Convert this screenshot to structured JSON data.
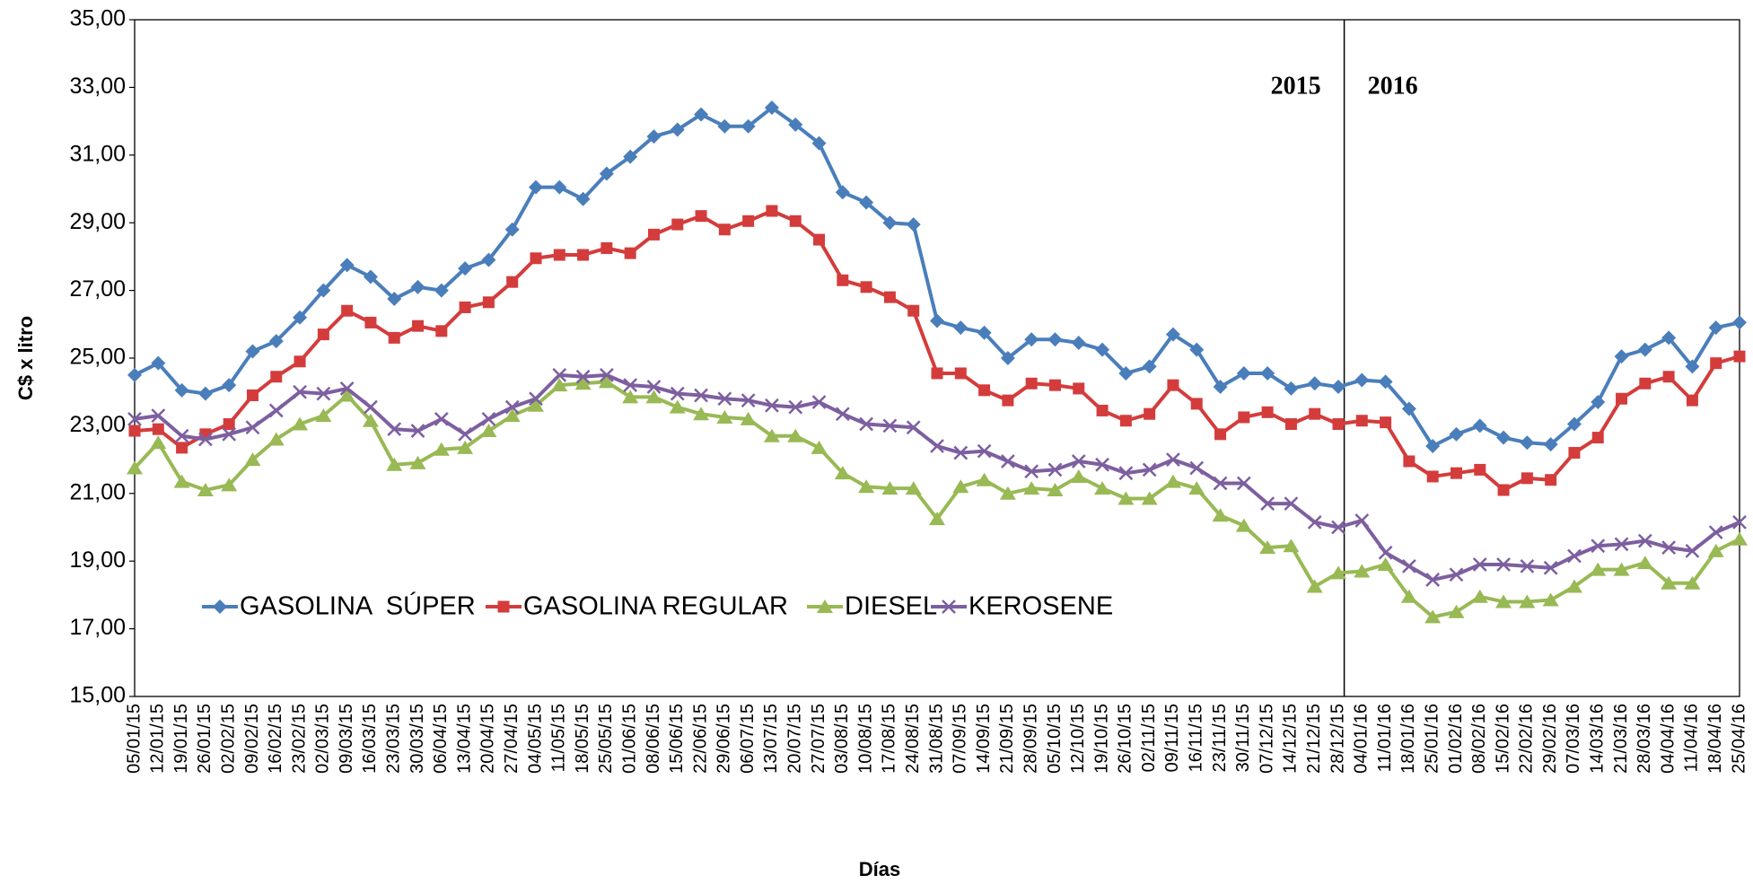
{
  "chart_data": {
    "type": "line",
    "y_label": "C$ x litro",
    "x_label": "Días",
    "annotations": [
      "2015",
      "2016"
    ],
    "categories": [
      "05/01/15",
      "12/01/15",
      "19/01/15",
      "26/01/15",
      "02/02/15",
      "09/02/15",
      "16/02/15",
      "23/02/15",
      "02/03/15",
      "09/03/15",
      "16/03/15",
      "23/03/15",
      "30/03/15",
      "06/04/15",
      "13/04/15",
      "20/04/15",
      "27/04/15",
      "04/05/15",
      "11/05/15",
      "18/05/15",
      "25/05/15",
      "01/06/15",
      "08/06/15",
      "15/06/15",
      "22/06/15",
      "29/06/15",
      "06/07/15",
      "13/07/15",
      "20/07/15",
      "27/07/15",
      "03/08/15",
      "10/08/15",
      "17/08/15",
      "24/08/15",
      "31/08/15",
      "07/09/15",
      "14/09/15",
      "21/09/15",
      "28/09/15",
      "05/10/15",
      "12/10/15",
      "19/10/15",
      "26/10/15",
      "02/11/15",
      "09/11/15",
      "16/11/15",
      "23/11/15",
      "30/11/15",
      "07/12/15",
      "14/12/15",
      "21/12/15",
      "28/12/15",
      "04/01/16",
      "11/01/16",
      "18/01/16",
      "25/01/16",
      "01/02/16",
      "08/02/16",
      "15/02/16",
      "22/02/16",
      "29/02/16",
      "07/03/16",
      "14/03/16",
      "21/03/16",
      "28/03/16",
      "04/04/16",
      "11/04/16",
      "18/04/16",
      "25/04/16"
    ],
    "series": [
      {
        "name": "GASOLINA  SÚPER",
        "color": "#4a7ebb",
        "marker": "diamond",
        "values": [
          24.5,
          24.85,
          24.05,
          23.95,
          24.2,
          25.2,
          25.5,
          26.2,
          27.0,
          27.75,
          27.4,
          26.75,
          27.1,
          27.0,
          27.65,
          27.9,
          28.8,
          30.05,
          30.05,
          29.7,
          30.45,
          30.95,
          31.55,
          31.75,
          32.2,
          31.85,
          31.85,
          32.4,
          31.9,
          31.35,
          29.9,
          29.6,
          29.0,
          28.95,
          26.1,
          25.9,
          25.75,
          25.0,
          25.55,
          25.55,
          25.45,
          25.25,
          24.55,
          24.75,
          25.7,
          25.25,
          24.15,
          24.55,
          24.55,
          24.1,
          24.25,
          24.15,
          24.35,
          24.3,
          23.5,
          22.4,
          22.75,
          23.0,
          22.65,
          22.5,
          22.45,
          23.05,
          23.7,
          25.05,
          25.25,
          25.6,
          24.75,
          25.9,
          26.05
        ]
      },
      {
        "name": "GASOLINA REGULAR",
        "color": "#d43c3c",
        "marker": "square",
        "values": [
          22.85,
          22.9,
          22.35,
          22.75,
          23.05,
          23.9,
          24.45,
          24.9,
          25.7,
          26.4,
          26.05,
          25.6,
          25.95,
          25.8,
          26.5,
          26.65,
          27.25,
          27.95,
          28.05,
          28.05,
          28.25,
          28.1,
          28.65,
          28.95,
          29.2,
          28.8,
          29.05,
          29.35,
          29.05,
          28.5,
          27.3,
          27.1,
          26.8,
          26.4,
          24.55,
          24.55,
          24.05,
          23.75,
          24.25,
          24.2,
          24.1,
          23.45,
          23.15,
          23.35,
          24.2,
          23.65,
          22.75,
          23.25,
          23.4,
          23.05,
          23.35,
          23.05,
          23.15,
          23.1,
          21.95,
          21.5,
          21.6,
          21.7,
          21.1,
          21.45,
          21.4,
          22.2,
          22.65,
          23.8,
          24.25,
          24.45,
          23.75,
          24.85,
          25.05
        ]
      },
      {
        "name": "DIESEL",
        "color": "#98b954",
        "marker": "triangle",
        "values": [
          21.75,
          22.5,
          21.35,
          21.1,
          21.25,
          22.0,
          22.6,
          23.05,
          23.3,
          23.9,
          23.15,
          21.85,
          21.9,
          22.3,
          22.35,
          22.85,
          23.3,
          23.6,
          24.2,
          24.25,
          24.3,
          23.85,
          23.85,
          23.55,
          23.35,
          23.25,
          23.2,
          22.7,
          22.7,
          22.35,
          21.6,
          21.2,
          21.15,
          21.15,
          20.25,
          21.2,
          21.4,
          21.0,
          21.15,
          21.1,
          21.5,
          21.15,
          20.85,
          20.85,
          21.35,
          21.15,
          20.35,
          20.05,
          19.4,
          19.45,
          18.25,
          18.65,
          18.7,
          18.9,
          17.95,
          17.35,
          17.5,
          17.95,
          17.8,
          17.8,
          17.85,
          18.25,
          18.75,
          18.75,
          18.95,
          18.35,
          18.35,
          19.3,
          19.65
        ]
      },
      {
        "name": "KEROSENE",
        "color": "#7d5fa0",
        "marker": "x",
        "values": [
          23.2,
          23.3,
          22.7,
          22.6,
          22.75,
          22.95,
          23.45,
          24.0,
          23.95,
          24.1,
          23.55,
          22.9,
          22.85,
          23.2,
          22.75,
          23.2,
          23.55,
          23.8,
          24.5,
          24.45,
          24.5,
          24.2,
          24.15,
          23.95,
          23.9,
          23.8,
          23.75,
          23.6,
          23.55,
          23.7,
          23.35,
          23.05,
          23.0,
          22.95,
          22.4,
          22.2,
          22.25,
          21.95,
          21.65,
          21.7,
          21.95,
          21.85,
          21.6,
          21.7,
          22.0,
          21.75,
          21.3,
          21.3,
          20.7,
          20.7,
          20.15,
          20.0,
          20.2,
          19.25,
          18.85,
          18.45,
          18.6,
          18.9,
          18.9,
          18.85,
          18.8,
          19.15,
          19.45,
          19.5,
          19.6,
          19.4,
          19.3,
          19.85,
          20.15
        ]
      }
    ],
    "ylim": [
      15,
      35
    ],
    "yticks": [
      {
        "value": 15,
        "label": "15,00"
      },
      {
        "value": 17,
        "label": "17,00"
      },
      {
        "value": 19,
        "label": "19,00"
      },
      {
        "value": 21,
        "label": "21,00"
      },
      {
        "value": 23,
        "label": "23,00"
      },
      {
        "value": 25,
        "label": "25,00"
      },
      {
        "value": 27,
        "label": "27,00"
      },
      {
        "value": 29,
        "label": "29,00"
      },
      {
        "value": 31,
        "label": "31,00"
      },
      {
        "value": 33,
        "label": "33,00"
      },
      {
        "value": 35,
        "label": "35,00"
      }
    ],
    "grid": false,
    "legend": "lower left"
  }
}
